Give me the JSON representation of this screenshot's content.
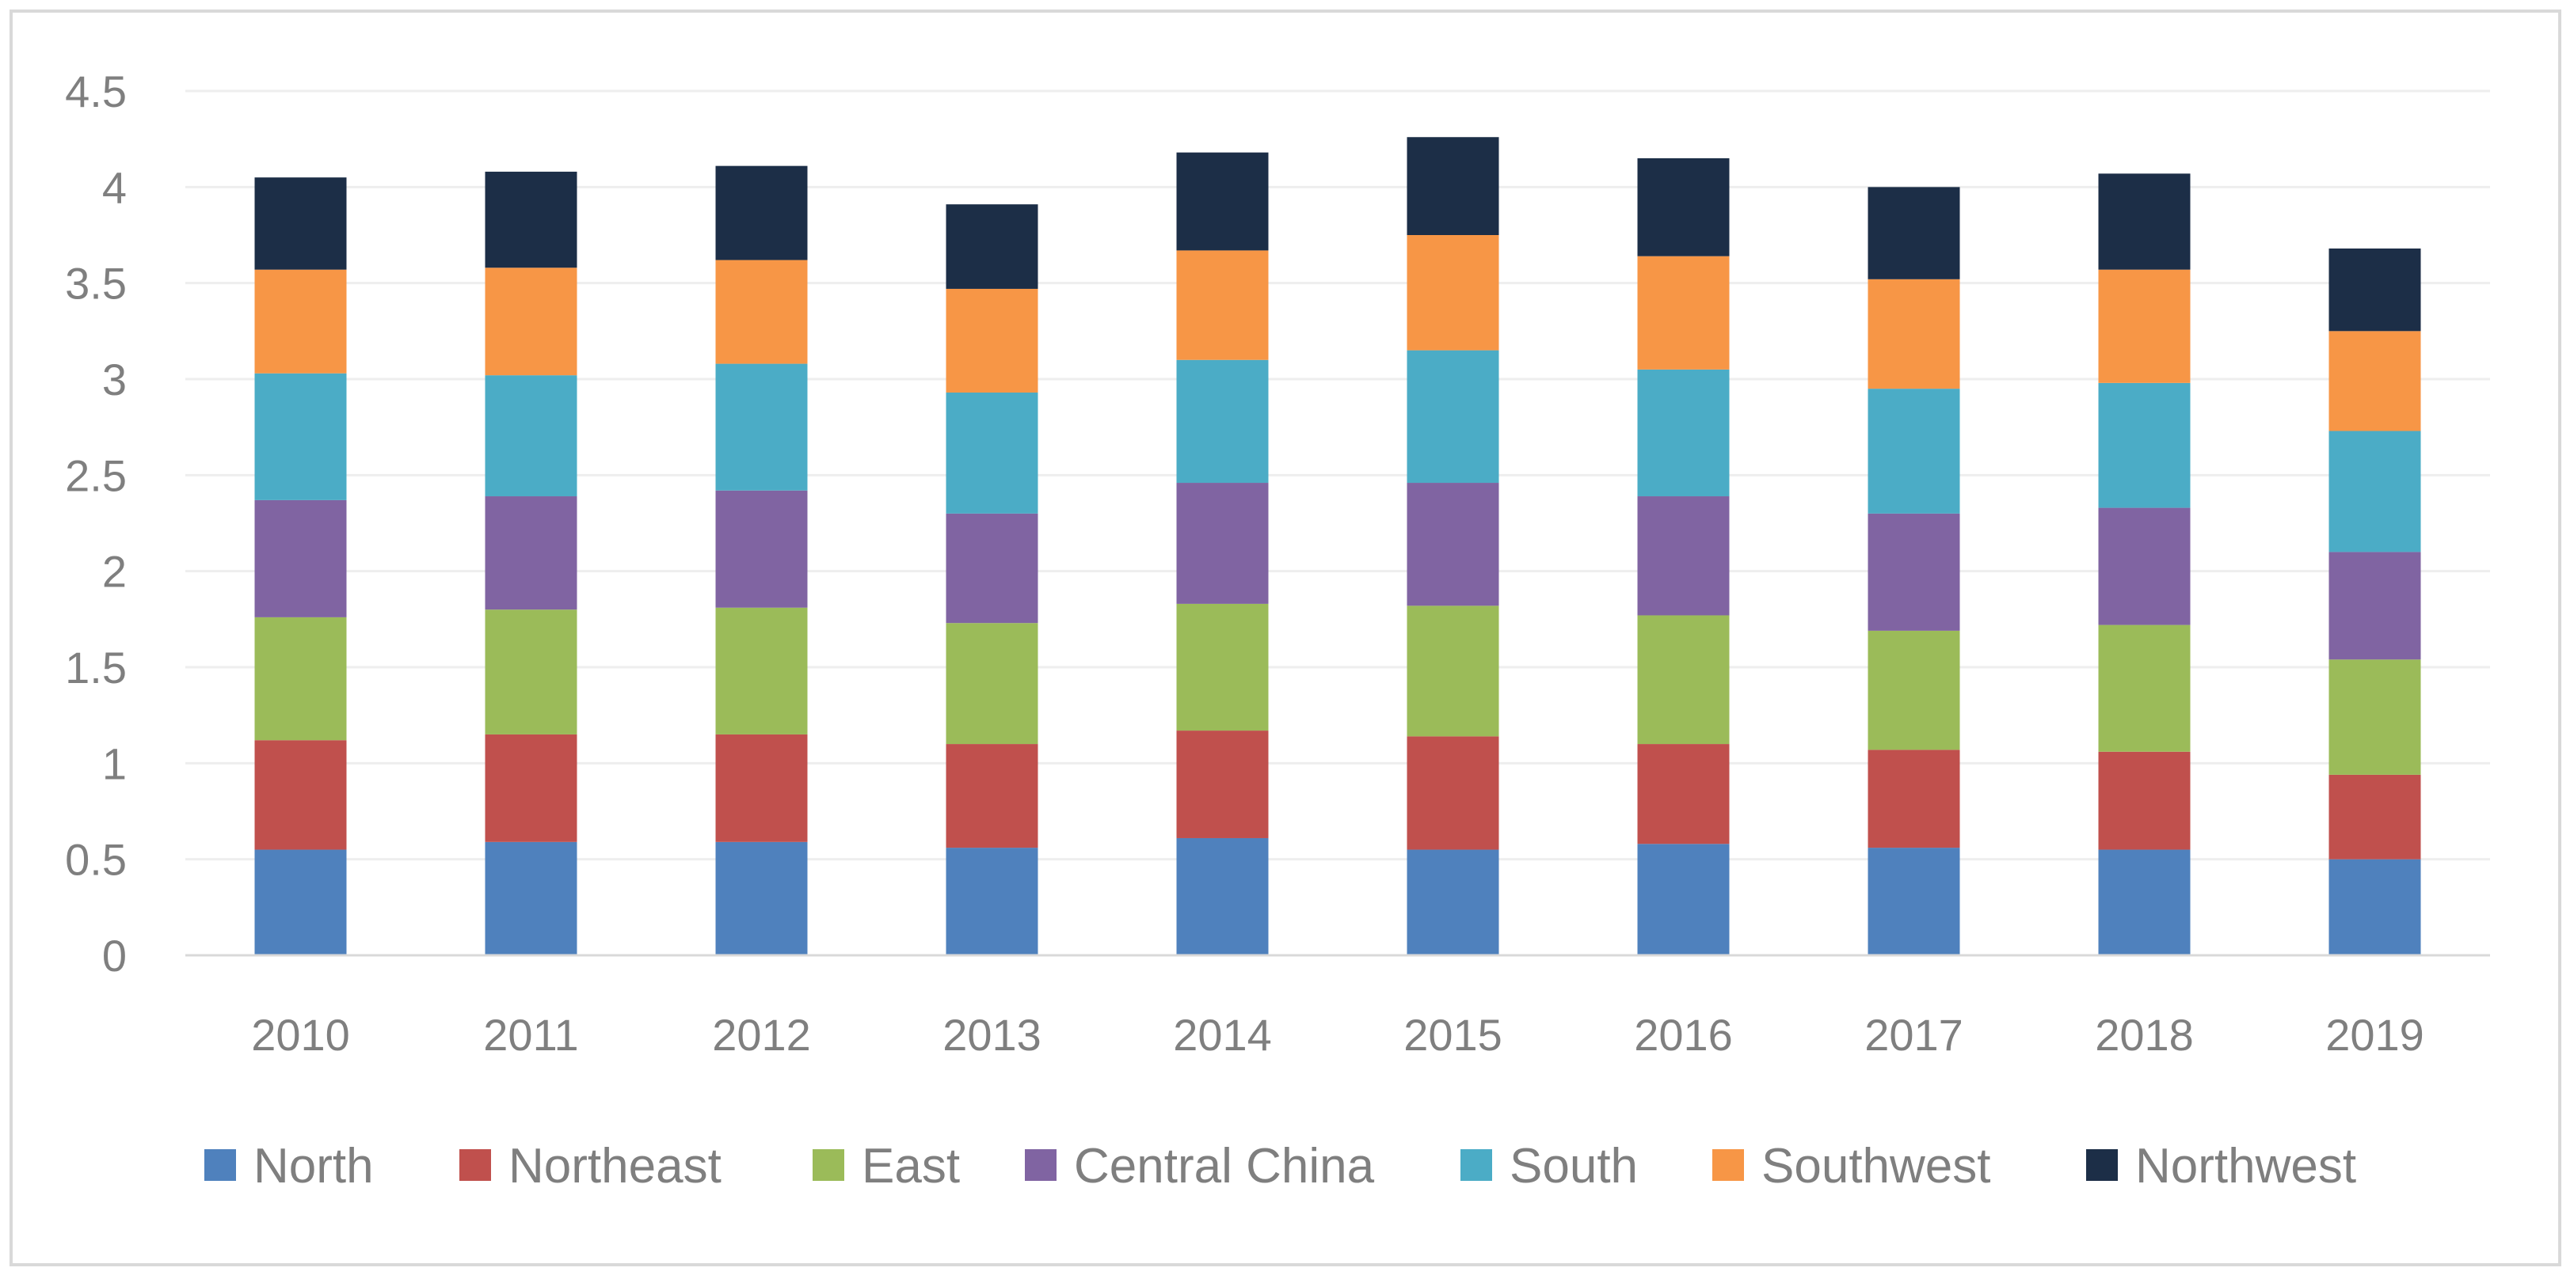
{
  "chart_data": {
    "type": "bar",
    "stacked": true,
    "title": "",
    "xlabel": "",
    "ylabel": "",
    "ylim": [
      0,
      4.5
    ],
    "yticks": [
      0,
      0.5,
      1,
      1.5,
      2,
      2.5,
      3,
      3.5,
      4,
      4.5
    ],
    "ytick_labels": [
      "0",
      "0.5",
      "1",
      "1.5",
      "2",
      "2.5",
      "3",
      "3.5",
      "4",
      "4.5"
    ],
    "grid": true,
    "legend_position": "bottom",
    "categories": [
      "2010",
      "2011",
      "2012",
      "2013",
      "2014",
      "2015",
      "2016",
      "2017",
      "2018",
      "2019"
    ],
    "series": [
      {
        "name": "North",
        "color": "#4f81bd",
        "values": [
          0.55,
          0.59,
          0.59,
          0.56,
          0.61,
          0.55,
          0.58,
          0.56,
          0.55,
          0.5
        ]
      },
      {
        "name": "Northeast",
        "color": "#c0504d",
        "values": [
          0.57,
          0.56,
          0.56,
          0.54,
          0.56,
          0.59,
          0.52,
          0.51,
          0.51,
          0.44
        ]
      },
      {
        "name": "East",
        "color": "#9bbb59",
        "values": [
          0.64,
          0.65,
          0.66,
          0.63,
          0.66,
          0.68,
          0.67,
          0.62,
          0.66,
          0.6
        ]
      },
      {
        "name": "Central China",
        "color": "#8064a2",
        "values": [
          0.61,
          0.59,
          0.61,
          0.57,
          0.63,
          0.64,
          0.62,
          0.61,
          0.61,
          0.56
        ]
      },
      {
        "name": "South",
        "color": "#4bacc6",
        "values": [
          0.66,
          0.63,
          0.66,
          0.63,
          0.64,
          0.69,
          0.66,
          0.65,
          0.65,
          0.63
        ]
      },
      {
        "name": "Southwest",
        "color": "#f79646",
        "values": [
          0.54,
          0.56,
          0.54,
          0.54,
          0.57,
          0.6,
          0.59,
          0.57,
          0.59,
          0.52
        ]
      },
      {
        "name": "Northwest",
        "color": "#1c2e47",
        "values": [
          0.48,
          0.5,
          0.49,
          0.44,
          0.51,
          0.51,
          0.51,
          0.48,
          0.5,
          0.43
        ]
      }
    ]
  }
}
